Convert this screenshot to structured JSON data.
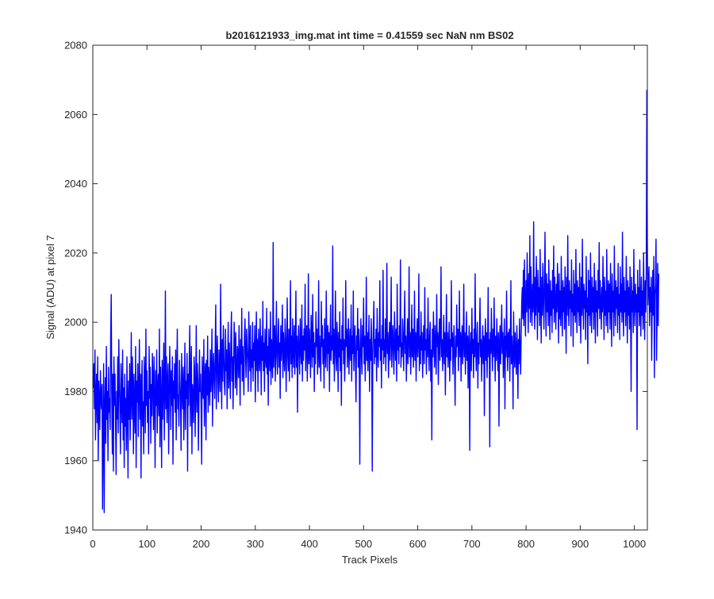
{
  "chart_data": {
    "type": "line",
    "title": "b2016121933_img.mat int time = 0.41559 sec  NaN nm BS02",
    "xlabel": "Track Pixels",
    "ylabel": "Signal (ADU) at pixel 7",
    "xlim": [
      0,
      1024
    ],
    "ylim": [
      1940,
      2080
    ],
    "xticks": [
      0,
      100,
      200,
      300,
      400,
      500,
      600,
      700,
      800,
      900,
      1000
    ],
    "yticks": [
      1940,
      1960,
      1980,
      2000,
      2020,
      2040,
      2060,
      2080
    ],
    "grid": false,
    "line_color": "#0000ff",
    "series": [
      {
        "x_start": 1,
        "x_step": 1,
        "values": [
          1981,
          1988,
          1975,
          1992,
          1966,
          1979,
          1985,
          1971,
          1990,
          1960,
          1983,
          1977,
          1969,
          1986,
          1978,
          1975,
          1982,
          1946,
          1970,
          1988,
          1945,
          1975,
          1984,
          1965,
          1993,
          1972,
          1980,
          1960,
          1987,
          1974,
          1978,
          1969,
          1996,
          2008,
          1979,
          1962,
          1985,
          1957,
          1990,
          1976,
          1985,
          1971,
          1956,
          1980,
          1972,
          1990,
          1968,
          1995,
          1983,
          1975,
          1962,
          1988,
          1978,
          1971,
          1992,
          1966,
          1981,
          1958,
          1985,
          1970,
          1978,
          1963,
          1990,
          1976,
          1955,
          1983,
          1972,
          1988,
          1966,
          1979,
          1997,
          1972,
          1990,
          1981,
          1962,
          1985,
          1975,
          1968,
          1993,
          1958,
          1983,
          1977,
          1988,
          1967,
          1980,
          1995,
          1972,
          1985,
          1955,
          1981,
          1989,
          1970,
          1977,
          1962,
          1990,
          1983,
          1968,
          1998,
          1976,
          1986,
          1971,
          1980,
          1962,
          1993,
          1978,
          1987,
          1965,
          1982,
          1973,
          1991,
          1983,
          1969,
          1990,
          1978,
          1958,
          1986,
          1976,
          1992,
          1968,
          1981,
          1985,
          1973,
          1998,
          1964,
          1987,
          1978,
          1958,
          1989,
          1972,
          1983,
          1994,
          1966,
          1980,
          2009,
          1975,
          1990,
          1971,
          1983,
          1988,
          1962,
          1978,
          1993,
          1982,
          1969,
          1986,
          1976,
          1990,
          1959,
          1983,
          1978,
          1988,
          1974,
          1992,
          1966,
          1985,
          1998,
          1975,
          1979,
          1970,
          1989,
          1983,
          1977,
          1963,
          1991,
          1982,
          1975,
          1987,
          1966,
          1980,
          1994,
          1969,
          1983,
          1978,
          1991,
          1957,
          1985,
          1976,
          1988,
          1999,
          1970,
          1984,
          1993,
          1962,
          1982,
          1979,
          1971,
          1990,
          1986,
          1967,
          1981,
          1999,
          1974,
          1988,
          1983,
          1963,
          1977,
          1992,
          1980,
          1985,
          1975,
          1959,
          1990,
          1982,
          1978,
          1995,
          1970,
          1984,
          1988,
          1966,
          1989,
          1979,
          1996,
          1974,
          1987,
          1983,
          1976,
          1992,
          1980,
          1985,
          1998,
          1970,
          1986,
          1991,
          1983,
          1978,
          1993,
          2005,
          1975,
          1989,
          1996,
          1983,
          1977,
          1992,
          1986,
          1980,
          2011,
          1989,
          1975,
          1995,
          1983,
          1999,
          1991,
          1982,
          1979,
          1998,
          1986,
          1992,
          1975,
          1988,
          2000,
          1981,
          1994,
          1986,
          1978,
          1996,
          2003,
          1983,
          1990,
          1975,
          1987,
          2000,
          1993,
          1981,
          1997,
          1986,
          1979,
          1993,
          1991,
          1984,
          1999,
          1989,
          1976,
          1995,
          1988,
          2004,
          1983,
          1993,
          1986,
          1979,
          1996,
          2001,
          1990,
          1984,
          1998,
          1993,
          1988,
          1980,
          2003,
          1993,
          1986,
          1999,
          1980,
          1992,
          1987,
          2000,
          1983,
          1994,
          1989,
          1999,
          1977,
          1991,
          2003,
          1986,
          1995,
          1980,
          1998,
          1990,
          1986,
          2001,
          1993,
          1979,
          1996,
          1989,
          2006,
          1986,
          1994,
          1980,
          1998,
          1991,
          1987,
          2004,
          1985,
          1993,
          1976,
          1998,
          1992,
          1986,
          2003,
          1982,
          1995,
          1990,
          1984,
          2023,
          1987,
          1994,
          1999,
          1983,
          1992,
          2006,
          1990,
          1985,
          1996,
          2001,
          1987,
          1994,
          1978,
          1999,
          1989,
          1993,
          2005,
          1984,
          1997,
          1991,
          1986,
          2001,
          1995,
          1980,
          1993,
          2007,
          1990,
          1986,
          1998,
          1983,
          1994,
          2012,
          1988,
          1996,
          1984,
          2001,
          1992,
          1987,
          1999,
          1985,
          1994,
          2009,
          1987,
          1996,
          1974,
          1993,
          1999,
          1990,
          1985,
          2001,
          1993,
          1988,
          2005,
          1983,
          1996,
          1989,
          1998,
          1992,
          2011,
          1986,
          1994,
          1999,
          1983,
          1991,
          2014,
          1988,
          1998,
          1992,
          1984,
          2002,
          1995,
          1987,
          2008,
          1990,
          1997,
          1980,
          1994,
          1988,
          2003,
          1993,
          1998,
          1985,
          1991,
          2012,
          1987,
          1996,
          1990,
          1983,
          2006,
          1993,
          1999,
          1988,
          1995,
          1981,
          2001,
          1993,
          1987,
          2009,
          1994,
          1986,
          1999,
          1991,
          1997,
          1980,
          1994,
          2005,
          1989,
          1996,
          1992,
          2022,
          1988,
          1998,
          1983,
          1993,
          2009,
          1990,
          1986,
          2000,
          1994,
          1980,
          1997,
          1990,
          2003,
          1986,
          1995,
          1976,
          1999,
          1992,
          2007,
          1988,
          1995,
          1983,
          1990,
          2012,
          1993,
          1998,
          1987,
          1994,
          2001,
          1985,
          1993,
          1998,
          1989,
          2005,
          1983,
          1996,
          1991,
          2009,
          1986,
          1994,
          1999,
          1988,
          1977,
          1996,
          1992,
          2004,
          1987,
          1998,
          1991,
          1959,
          1994,
          2001,
          1990,
          1985,
          1999,
          1993,
          2007,
          1988,
          1996,
          1983,
          1992,
          2013,
          1989,
          1997,
          1986,
          1994,
          2002,
          1980,
          1995,
          1989,
          2001,
          1993,
          1957,
          1991,
          1999,
          2006,
          1988,
          1995,
          1990,
          1998,
          1983,
          2004,
          1992,
          1987,
          1997,
          1993,
          2012,
          1989,
          1995,
          1981,
          1999,
          1992,
          2015,
          1988,
          1995,
          1990,
          2001,
          1986,
          1994,
          2017,
          1991,
          1997,
          1984,
          1993,
          2000,
          1989,
          1996,
          2013,
          1987,
          1994,
          1999,
          1991,
          1985,
          2003,
          1995,
          1989,
          1998,
          1983,
          2011,
          1992,
          1996,
          1988,
          1999,
          1993,
          2018,
          1987,
          1994,
          1990,
          2001,
          1995,
          1986,
          1998,
          2009,
          1991,
          1996,
          1983,
          1993,
          2001,
          1988,
          1995,
          2016,
          1990,
          1997,
          1985,
          1994,
          2005,
          1990,
          1998,
          1987,
          1993,
          2009,
          1989,
          1997,
          1983,
          1995,
          2001,
          1990,
          1994,
          2014,
          1986,
          1996,
          1988,
          2003,
          1992,
          1997,
          1984,
          1994,
          1999,
          1988,
          2010,
          1992,
          1995,
          1985,
          1998,
          1990,
          2007,
          1993,
          1986,
          1996,
          2000,
          1983,
          1992,
          1966,
          1998,
          1990,
          2003,
          1994,
          1987,
          1999,
          1992,
          1985,
          2008,
          1993,
          1997,
          1982,
          1994,
          2001,
          1989,
          1996,
          2016,
          1990,
          1995,
          1986,
          1993,
          2002,
          1988,
          1997,
          1979,
          1994,
          2008,
          1990,
          1997,
          1987,
          1993,
          2000,
          1983,
          1995,
          1989,
          2012,
          1993,
          1997,
          1985,
          1994,
          1999,
          1988,
          1976,
          1996,
          1990,
          2005,
          1993,
          1998,
          1986,
          1994,
          2009,
          1990,
          1997,
          1983,
          1995,
          1999,
          1988,
          1994,
          2011,
          1990,
          1997,
          1985,
          1993,
          2003,
          1989,
          1996,
          1981,
          1994,
          1999,
          1963,
          1993,
          1997,
          1986,
          2004,
          1991,
          1995,
          1984,
          1998,
          1990,
          2014,
          1993,
          1986,
          1996,
          2000,
          1981,
          1994,
          1988,
          1997,
          2007,
          1990,
          1995,
          1983,
          1993,
          1999,
          1988,
          1996,
          1973,
          1994,
          2001,
          1989,
          1997,
          1984,
          1993,
          2010,
          1990,
          1995,
          1964,
          1997,
          1991,
          2004,
          1993,
          1986,
          1998,
          1990,
          2007,
          1994,
          1983,
          1996,
          1989,
          2001,
          1993,
          1986,
          1997,
          1970,
          1994,
          1999,
          1988,
          1995,
          2005,
          1991,
          1997,
          1984,
          1993,
          2001,
          1975,
          1996,
          1990,
          2009,
          1994,
          1986,
          1997,
          1990,
          1998,
          1983,
          1994,
          2012,
          1988,
          1996,
          1991,
          1975,
          2003,
          1993,
          1987,
          1997,
          1991,
          1985,
          1999,
          1993,
          1978,
          1995,
          1988,
          2001,
          1992,
          1985,
          1996,
          2006,
          2010,
          2001,
          2015,
          1999,
          2018,
          2005,
          1996,
          2012,
          2003,
          2020,
          2008,
          1997,
          2014,
          2004,
          2025,
          2000,
          2016,
          2007,
          1999,
          2011,
          2003,
          2029,
          2006,
          1998,
          2013,
          2002,
          2019,
          2008,
          1995,
          2015,
          2003,
          2010,
          1999,
          2021,
          2006,
          1994,
          2013,
          2002,
          2017,
          2008,
          1998,
          2010,
          2026,
          2005,
          1996,
          2014,
          2003,
          2011,
          1999,
          2018,
          2007,
          1995,
          2012,
          2002,
          2009,
          1997,
          2015,
          2004,
          2022,
          2000,
          2013,
          2006,
          1998,
          2011,
          2003,
          2017,
          2008,
          1994,
          2014,
          2001,
          2009,
          1999,
          2019,
          2005,
          1996,
          2012,
          2003,
          2010,
          1998,
          2016,
          2007,
          1991,
          2013,
          2002,
          2025,
          2006,
          1999,
          2012,
          2004,
          2009,
          1996,
          2018,
          2003,
          2008,
          1993,
          2015,
          2002,
          2011,
          2000,
          2021,
          2006,
          1997,
          2012,
          2003,
          2010,
          1999,
          2017,
          2005,
          1994,
          2013,
          2002,
          2024,
          2006,
          1998,
          2011,
          2004,
          2009,
          1995,
          2019,
          2003,
          2007,
          1988,
          2015,
          2002,
          2012,
          1999,
          2020,
          2005,
          1997,
          2013,
          2003,
          2010,
          1998,
          2017,
          2006,
          1994,
          2012,
          2003,
          2009,
          1996,
          2015,
          2004,
          2023,
          2001,
          2012,
          2006,
          1998,
          2010,
          2003,
          2019,
          2007,
          1995,
          2013,
          2002,
          2009,
          1999,
          2021,
          2005,
          1997,
          2012,
          2003,
          2011,
          1998,
          2017,
          2006,
          1993,
          2014,
          2003,
          2009,
          1996,
          2022,
          2005,
          1999,
          2012,
          2004,
          2010,
          1997,
          2017,
          2002,
          2008,
          1995,
          2016,
          2003,
          2011,
          2000,
          2026,
          2005,
          1996,
          2013,
          2003,
          2009,
          1999,
          2019,
          2006,
          1994,
          2012,
          2002,
          2010,
          1998,
          2016,
          2004,
          1980,
          2013,
          2003,
          2009,
          1997,
          2021,
          2006,
          1999,
          2011,
          2003,
          2008,
          1969,
          2015,
          2003,
          2010,
          1999,
          2018,
          2005,
          1996,
          2013,
          2002,
          2009,
          1998,
          2020,
          2006,
          1995,
          2012,
          2003,
          2014,
          2067,
          2022,
          2005,
          2011,
          2016,
          1999,
          2010,
          2003,
          2013,
          1989,
          2006,
          2015,
          2002,
          2019,
          1984,
          2008,
          2011,
          2024,
          1989,
          2003,
          2017,
          1999,
          2014
        ]
      }
    ]
  }
}
